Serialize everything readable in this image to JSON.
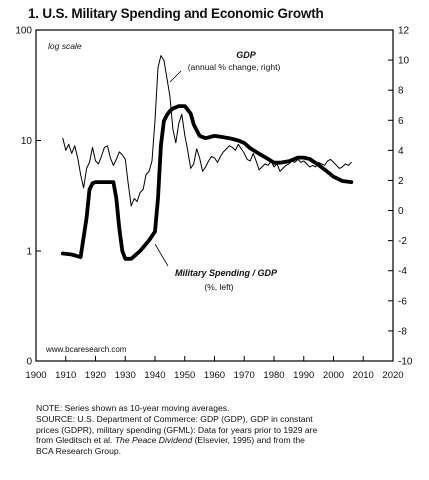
{
  "chart_data": {
    "type": "line",
    "title": "1. U.S. Military Spending and Economic Growth",
    "scale_note": "log scale",
    "source_credit": "www.bcaresearch.com",
    "x_ticks": [
      1900,
      1910,
      1920,
      1930,
      1940,
      1950,
      1960,
      1970,
      1980,
      1990,
      2000,
      2010,
      2020
    ],
    "xlim": [
      1900,
      2020
    ],
    "left_axis": {
      "scale": "log",
      "ylim": [
        0,
        100
      ],
      "ticks": [
        {
          "v": 1,
          "label": "1"
        },
        {
          "v": 10,
          "label": "10"
        },
        {
          "v": 100,
          "label": "100"
        }
      ],
      "bottom_label": "0"
    },
    "right_axis": {
      "scale": "linear",
      "ylim": [
        -10,
        12
      ],
      "ticks": [
        12,
        10,
        8,
        6,
        4,
        2,
        0,
        -2,
        -4,
        -6,
        -8,
        -10
      ]
    },
    "series": [
      {
        "name": "GDP",
        "annotation_title": "GDP",
        "annotation_sub": "(annual % change, right)",
        "axis": "right",
        "style": "thin",
        "x": [
          1909,
          1910,
          1911,
          1912,
          1913,
          1914,
          1915,
          1916,
          1917,
          1918,
          1919,
          1920,
          1921,
          1922,
          1923,
          1924,
          1925,
          1926,
          1927,
          1928,
          1929,
          1930,
          1931,
          1932,
          1933,
          1934,
          1935,
          1936,
          1937,
          1938,
          1939,
          1940,
          1941,
          1942,
          1943,
          1944,
          1945,
          1946,
          1947,
          1948,
          1949,
          1950,
          1951,
          1952,
          1953,
          1954,
          1955,
          1956,
          1957,
          1958,
          1959,
          1960,
          1961,
          1962,
          1963,
          1964,
          1965,
          1966,
          1967,
          1968,
          1969,
          1970,
          1971,
          1972,
          1973,
          1974,
          1975,
          1976,
          1977,
          1978,
          1979,
          1980,
          1981,
          1982,
          1983,
          1984,
          1985,
          1986,
          1987,
          1988,
          1989,
          1990,
          1991,
          1992,
          1993,
          1994,
          1995,
          1996,
          1997,
          1998,
          1999,
          2000,
          2001,
          2002,
          2003,
          2004,
          2005,
          2006
        ],
        "values": [
          4.8,
          4.0,
          4.4,
          3.8,
          4.3,
          3.5,
          2.4,
          1.5,
          2.8,
          3.2,
          4.2,
          3.3,
          3.1,
          3.6,
          4.2,
          4.3,
          3.5,
          3.0,
          3.4,
          3.9,
          3.7,
          3.4,
          1.8,
          0.3,
          0.8,
          0.6,
          1.2,
          1.4,
          2.4,
          2.6,
          3.3,
          6.0,
          9.5,
          10.3,
          10.0,
          8.8,
          7.6,
          5.4,
          4.5,
          5.8,
          6.4,
          5.0,
          4.0,
          2.8,
          3.1,
          4.1,
          3.5,
          2.6,
          2.9,
          3.3,
          3.6,
          3.5,
          3.2,
          3.6,
          3.9,
          4.1,
          4.3,
          4.2,
          4.0,
          4.4,
          4.1,
          3.8,
          3.4,
          3.3,
          3.8,
          3.3,
          2.7,
          2.9,
          3.1,
          3.0,
          3.3,
          2.9,
          3.1,
          2.6,
          2.8,
          3.0,
          3.1,
          3.3,
          3.2,
          3.4,
          3.2,
          3.3,
          3.1,
          2.9,
          3.0,
          2.9,
          3.2,
          3.1,
          3.0,
          3.3,
          3.4,
          3.2,
          3.0,
          2.8,
          2.9,
          3.1,
          3.0,
          3.2
        ]
      },
      {
        "name": "Military Spending / GDP",
        "annotation_title": "Military Spending / GDP",
        "annotation_sub": "(%, left)",
        "axis": "left",
        "style": "thick",
        "x": [
          1909,
          1912,
          1915,
          1917,
          1918,
          1919,
          1920,
          1922,
          1924,
          1926,
          1927,
          1928,
          1929,
          1930,
          1932,
          1935,
          1938,
          1940,
          1941,
          1942,
          1943,
          1944,
          1945,
          1946,
          1948,
          1950,
          1952,
          1953,
          1955,
          1957,
          1960,
          1962,
          1965,
          1968,
          1970,
          1972,
          1975,
          1978,
          1980,
          1982,
          1985,
          1988,
          1990,
          1992,
          1995,
          1998,
          2000,
          2003,
          2006
        ],
        "values": [
          0.95,
          0.93,
          0.88,
          2.0,
          3.6,
          4.1,
          4.2,
          4.2,
          4.2,
          4.2,
          3.0,
          1.6,
          1.0,
          0.85,
          0.85,
          1.0,
          1.25,
          1.5,
          3.0,
          9.0,
          15.0,
          17.0,
          18.5,
          19.5,
          20.5,
          20.5,
          17.5,
          14.0,
          11.0,
          10.5,
          11.0,
          10.8,
          10.5,
          10.0,
          9.5,
          8.5,
          7.6,
          6.8,
          6.3,
          6.3,
          6.5,
          7.0,
          7.0,
          6.8,
          6.0,
          5.2,
          4.7,
          4.3,
          4.2
        ]
      }
    ]
  },
  "notes": {
    "line1": "NOTE: Series shown as 10-year moving averages.",
    "line2": "SOURCE: U.S. Department of Commerce: GDP (GDP), GDP in constant",
    "line3": "prices (GDPR), military spending (GFML): Data for years prior to 1929 are",
    "line4_a": "from Gleditsch et al. ",
    "line4_italic": "The Peace Dividend",
    "line4_b": " (Elsevier, 1995) and from the",
    "line5": "BCA Research Group."
  }
}
